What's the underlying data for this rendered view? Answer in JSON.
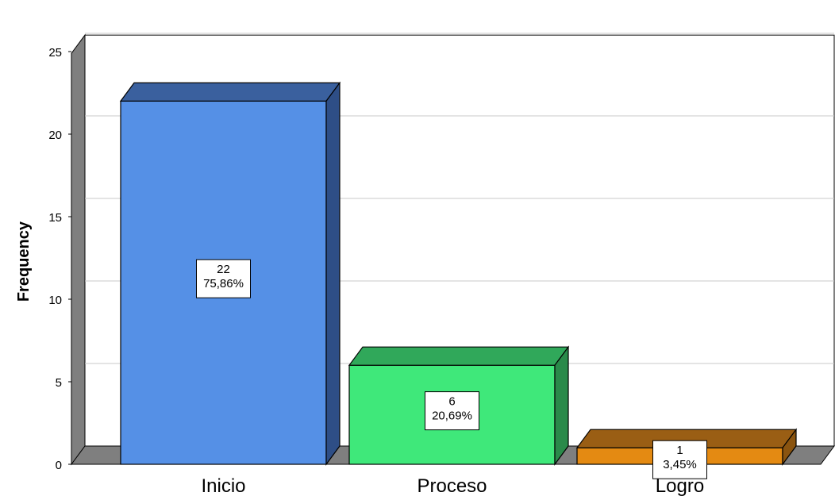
{
  "chart_data": {
    "type": "bar",
    "style": "3d",
    "categories": [
      "Inicio",
      "Proceso",
      "Logro"
    ],
    "values": [
      22,
      6,
      1
    ],
    "percent_labels": [
      "75,86%",
      "20,69%",
      "3,45%"
    ],
    "value_labels": [
      "22",
      "6",
      "1"
    ],
    "colors": [
      "#5590e6",
      "#3fe87a",
      "#e48a12"
    ],
    "side_colors": [
      "#2e4e86",
      "#2a8a4a",
      "#8a5410"
    ],
    "top_colors": [
      "#3a609e",
      "#30a85a",
      "#9a5e14"
    ],
    "ylabel": "Frequency",
    "xlabel": "",
    "title": "",
    "ylim": [
      0,
      26
    ],
    "yticks": [
      0,
      5,
      10,
      15,
      20,
      25
    ],
    "grid": true,
    "legend": "none"
  }
}
